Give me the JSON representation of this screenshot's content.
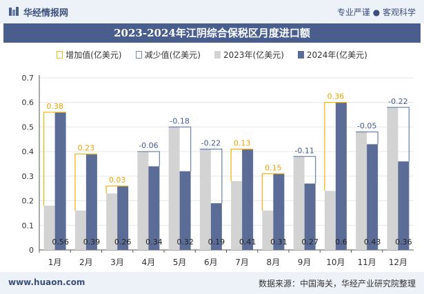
{
  "header": {
    "brand": "华经情报网",
    "slogan": "专业严谨 ● 客观科学"
  },
  "title": "2023-2024年江阴综合保税区月度进口额",
  "legend": {
    "increase": "增加值(亿美元)",
    "decrease": "减少值(亿美元)",
    "y2023": "2023年(亿美元)",
    "y2024": "2024年(亿美元)"
  },
  "footer": {
    "website": "www.huaon.com",
    "source": "数据来源：中国海关，华经产业研究院整理"
  },
  "colors": {
    "bar2023": "#d3d3d3",
    "bar2024": "#5b6c96",
    "increase": "#f3b617",
    "decrease": "#6f87b1",
    "header": "#4a5e8d"
  },
  "chart_data": {
    "type": "bar",
    "categories": [
      "1月",
      "2月",
      "3月",
      "4月",
      "5月",
      "6月",
      "7月",
      "8月",
      "9月",
      "10月",
      "11月",
      "12月"
    ],
    "series": [
      {
        "name": "2023年(亿美元)",
        "values": [
          0.18,
          0.16,
          0.23,
          0.4,
          0.5,
          0.41,
          0.28,
          0.16,
          0.38,
          0.24,
          0.48,
          0.58
        ]
      },
      {
        "name": "2024年(亿美元)",
        "values": [
          0.56,
          0.39,
          0.26,
          0.34,
          0.32,
          0.19,
          0.41,
          0.31,
          0.27,
          0.6,
          0.43,
          0.36
        ]
      }
    ],
    "change_labels": [
      "0.38",
      "0.23",
      "0.03",
      "-0.06",
      "-0.18",
      "-0.22",
      "0.13",
      "0.15",
      "-0.11",
      "0.36",
      "-0.05",
      "-0.22"
    ],
    "bar_labels_2024": [
      "0.56",
      "0.39",
      "0.26",
      "0.34",
      "0.32",
      "0.19",
      "0.41",
      "0.31",
      "0.27",
      "0.6",
      "0.43",
      "0.36"
    ],
    "yticks": [
      "0",
      "0.1",
      "0.2",
      "0.3",
      "0.4",
      "0.5",
      "0.6",
      "0.7"
    ],
    "ylim": [
      0,
      0.7
    ],
    "legend_position": "top-center"
  }
}
